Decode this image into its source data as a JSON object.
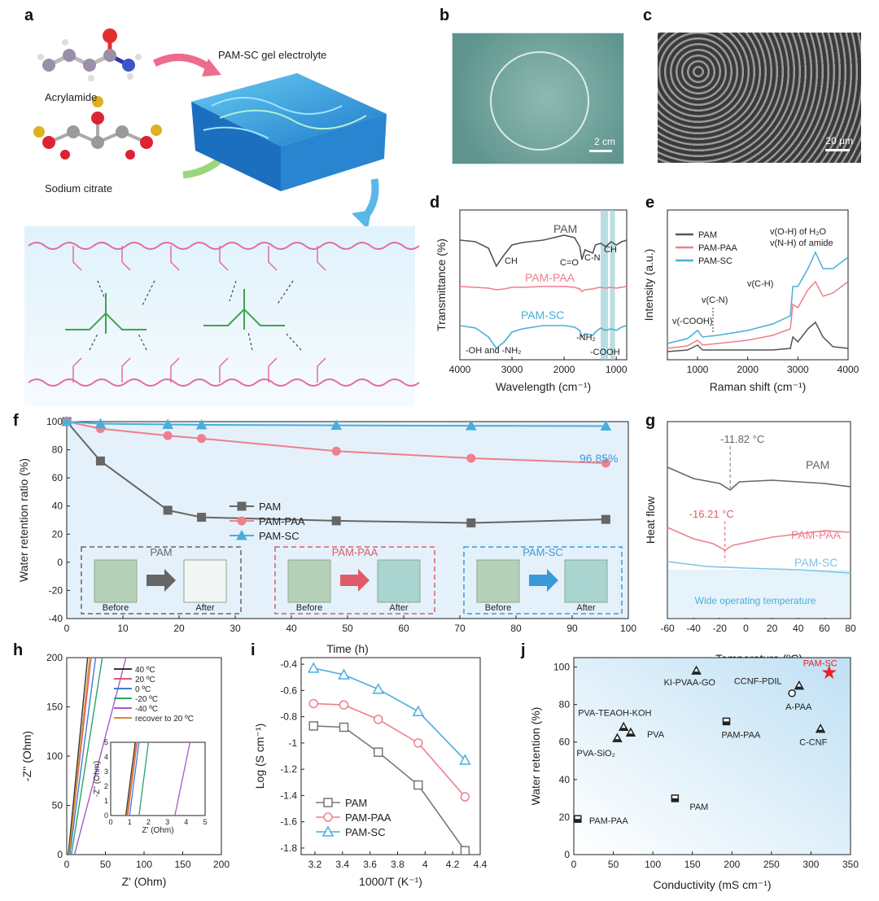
{
  "panel_labels": [
    "a",
    "b",
    "c",
    "d",
    "e",
    "f",
    "g",
    "h",
    "i",
    "j"
  ],
  "panel_a": {
    "acrylamide": "Acrylamide",
    "sodium_citrate": "Sodium citrate",
    "gel_title": "PAM-SC gel electrolyte"
  },
  "panel_b": {
    "scale": "2 cm"
  },
  "panel_c": {
    "scale": "20 μm"
  },
  "chart_data": [
    {
      "id": "d",
      "type": "line",
      "xlabel": "Wavelength (cm⁻¹)",
      "ylabel": "Transmittance (%)",
      "xlim": [
        4000,
        800
      ],
      "xticks": [
        4000,
        3000,
        2000,
        1000
      ],
      "series": [
        {
          "name": "PAM",
          "color": "#555555"
        },
        {
          "name": "PAM-PAA",
          "color": "#ee7f8c"
        },
        {
          "name": "PAM-SC",
          "color": "#4aaedb"
        }
      ],
      "annotations": [
        "CH",
        "C=O",
        "C-N",
        "CH",
        "-OH and -NH₂",
        "-NH₂",
        "-COOH"
      ]
    },
    {
      "id": "e",
      "type": "line",
      "xlabel": "Raman shift (cm⁻¹)",
      "ylabel": "Intensity (a.u.)",
      "xlim": [
        400,
        4000
      ],
      "xticks": [
        1000,
        2000,
        3000,
        4000
      ],
      "series": [
        {
          "name": "PAM",
          "color": "#555555"
        },
        {
          "name": "PAM-PAA",
          "color": "#ee7f8c"
        },
        {
          "name": "PAM-SC",
          "color": "#4aaedb"
        }
      ],
      "annotations": [
        "v(O-H) of H₂O",
        "v(N-H) of amide",
        "v(C-H)",
        "v(C-N)",
        "v(-COOH)"
      ]
    },
    {
      "id": "f",
      "type": "line",
      "xlabel": "Time (h)",
      "ylabel": "Water retention ratio (%)",
      "xlim": [
        0,
        100
      ],
      "ylim": [
        -40,
        100
      ],
      "xticks": [
        0,
        10,
        20,
        30,
        40,
        50,
        60,
        70,
        80,
        90,
        100
      ],
      "yticks": [
        -40,
        -20,
        0,
        20,
        40,
        60,
        80,
        100
      ],
      "x": [
        0,
        6,
        18,
        24,
        48,
        72,
        96
      ],
      "series": [
        {
          "name": "PAM",
          "color": "#666666",
          "marker": "square",
          "values": [
            100,
            72,
            37,
            32,
            29.5,
            28,
            30.5
          ]
        },
        {
          "name": "PAM-PAA",
          "color": "#ee7f8c",
          "marker": "circle",
          "values": [
            100,
            95,
            90,
            88,
            79,
            74,
            70.5
          ]
        },
        {
          "name": "PAM-SC",
          "color": "#4aaedb",
          "marker": "triangle",
          "values": [
            100,
            98.5,
            98,
            97.7,
            97.3,
            97,
            96.85
          ]
        }
      ],
      "end_label": "96.85%",
      "insets": [
        {
          "name": "PAM",
          "before": "Before",
          "after": "After",
          "color": "#666666"
        },
        {
          "name": "PAM-PAA",
          "before": "Before",
          "after": "After",
          "color": "#e05a6a"
        },
        {
          "name": "PAM-SC",
          "before": "Before",
          "after": "After",
          "color": "#3a9ad9"
        }
      ]
    },
    {
      "id": "g",
      "type": "line",
      "xlabel": "Temperature (ºC)",
      "ylabel": "Heat flow",
      "xlim": [
        -60,
        80
      ],
      "xticks": [
        -60,
        -40,
        -20,
        0,
        20,
        40,
        60,
        80
      ],
      "series": [
        {
          "name": "PAM",
          "color": "#666666"
        },
        {
          "name": "PAM-PAA",
          "color": "#ee7f8c"
        },
        {
          "name": "PAM-SC",
          "color": "#7cc4ea"
        }
      ],
      "annotations": [
        "-11.82 °C",
        "-16.21 °C",
        "Wide operating temperature"
      ]
    },
    {
      "id": "h",
      "type": "line",
      "xlabel": "Z' (Ohm)",
      "ylabel": "-Z'' (Ohm)",
      "xlim": [
        0,
        200
      ],
      "ylim": [
        0,
        200
      ],
      "xticks": [
        0,
        50,
        100,
        150,
        200
      ],
      "yticks": [
        0,
        50,
        100,
        150,
        200
      ],
      "series": [
        {
          "name": "40 ºC",
          "color": "#333333"
        },
        {
          "name": "20 ºC",
          "color": "#e05a6a"
        },
        {
          "name": "0 ºC",
          "color": "#3a7fd9"
        },
        {
          "name": "-20 ºC",
          "color": "#2aa36a"
        },
        {
          "name": "-40 ºC",
          "color": "#a45bc9"
        },
        {
          "name": "recover to 20 ºC",
          "color": "#d98a2a"
        }
      ],
      "inset": {
        "xlabel": "Z' (Ohm)",
        "ylabel": "-Z'' (Ohm)",
        "xlim": [
          0,
          5
        ],
        "ylim": [
          0,
          5
        ],
        "xticks": [
          0,
          1,
          2,
          3,
          4,
          5
        ],
        "yticks": [
          0,
          1,
          2,
          3,
          4,
          5
        ]
      }
    },
    {
      "id": "i",
      "type": "line",
      "xlabel": "1000/T (K⁻¹)",
      "ylabel": "Log (S cm⁻¹)",
      "xlim": [
        3.1,
        4.4
      ],
      "ylim": [
        -1.85,
        -0.35
      ],
      "xticks": [
        3.2,
        3.4,
        3.6,
        3.8,
        4.0,
        4.2,
        4.4
      ],
      "yticks": [
        -1.8,
        -1.6,
        -1.4,
        -1.2,
        -1.0,
        -0.8,
        -0.6,
        -0.4
      ],
      "x": [
        3.19,
        3.41,
        3.66,
        3.95,
        4.29
      ],
      "series": [
        {
          "name": "PAM",
          "color": "#777777",
          "marker": "square",
          "values": [
            -0.87,
            -0.88,
            -1.07,
            -1.32,
            -1.82
          ]
        },
        {
          "name": "PAM-PAA",
          "color": "#ee7f8c",
          "marker": "circle",
          "values": [
            -0.7,
            -0.71,
            -0.82,
            -1.0,
            -1.41
          ]
        },
        {
          "name": "PAM-SC",
          "color": "#4aaedb",
          "marker": "triangle",
          "values": [
            -0.43,
            -0.48,
            -0.59,
            -0.76,
            -1.13
          ]
        }
      ]
    },
    {
      "id": "j",
      "type": "scatter",
      "xlabel": "Conductivity (mS cm⁻¹)",
      "ylabel": "Water retention (%)",
      "xlim": [
        0,
        350
      ],
      "ylim": [
        0,
        105
      ],
      "xticks": [
        0,
        50,
        100,
        150,
        200,
        250,
        300,
        350
      ],
      "yticks": [
        0,
        20,
        40,
        60,
        80,
        100
      ],
      "points": [
        {
          "label": "PAM-SC",
          "x": 323,
          "y": 97,
          "marker": "star"
        },
        {
          "label": "KI-PVAA-GO",
          "x": 155,
          "y": 98,
          "marker": "triangle"
        },
        {
          "label": "CCNF-PDIL",
          "x": 285,
          "y": 90,
          "marker": "triangle"
        },
        {
          "label": "A-PAA",
          "x": 276,
          "y": 86,
          "marker": "circle"
        },
        {
          "label": "PVA-TEAOH-KOH",
          "x": 63,
          "y": 68,
          "marker": "triangle"
        },
        {
          "label": "PVA",
          "x": 72,
          "y": 65,
          "marker": "triangle"
        },
        {
          "label": "PVA-SiO₂",
          "x": 55,
          "y": 62,
          "marker": "triangle"
        },
        {
          "label": "PAM-PAA",
          "x": 193,
          "y": 71,
          "marker": "square"
        },
        {
          "label": "C-CNF",
          "x": 312,
          "y": 67,
          "marker": "triangle"
        },
        {
          "label": "PAM",
          "x": 128,
          "y": 30,
          "marker": "square"
        },
        {
          "label": "PAM-PAA",
          "x": 5,
          "y": 19,
          "marker": "square"
        }
      ]
    }
  ]
}
